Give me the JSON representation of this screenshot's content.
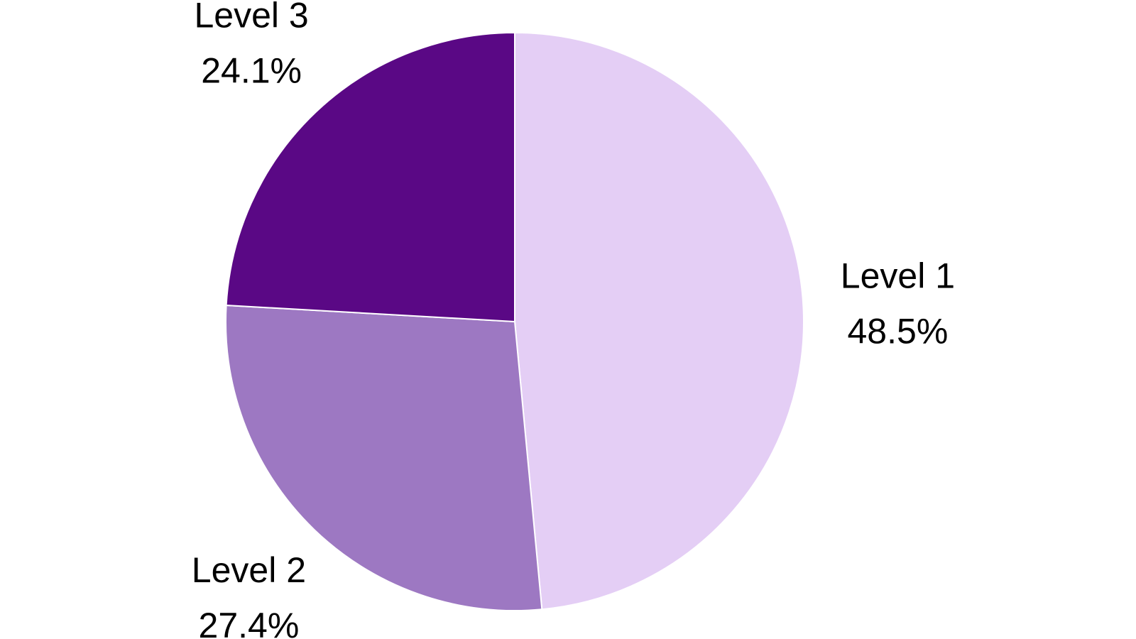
{
  "chart_data": {
    "type": "pie",
    "title": "",
    "start_angle_deg": 0,
    "direction": "clockwise",
    "slices": [
      {
        "label": "Level 1",
        "value": 48.5,
        "value_label": "48.5%",
        "color": "#E4CEF5"
      },
      {
        "label": "Level 2",
        "value": 27.4,
        "value_label": "27.4%",
        "color": "#9D78C2"
      },
      {
        "label": "Level 3",
        "value": 24.1,
        "value_label": "24.1%",
        "color": "#5A0885"
      }
    ],
    "slice_border_color": "#ffffff"
  }
}
